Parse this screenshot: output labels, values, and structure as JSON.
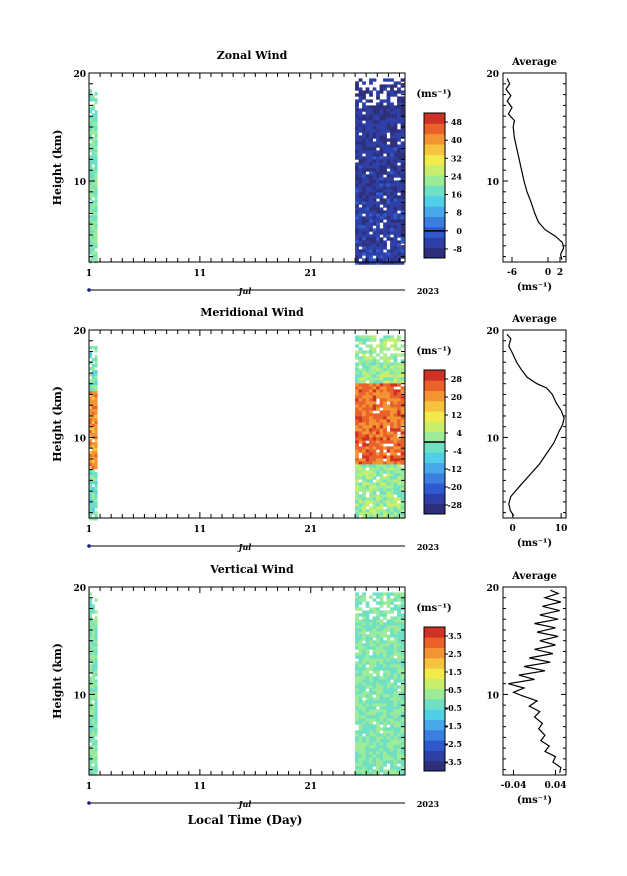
{
  "figure": {
    "xlabel": "Local Time (Day)",
    "cbar_unit": "(ms⁻¹)",
    "avg_unit": "(ms⁻¹)",
    "month_label": "Jul",
    "year_label": "2023"
  },
  "chart_data": [
    {
      "type": "heatmap",
      "title": "Zonal Wind",
      "ylabel": "Height (km)",
      "xlim": [
        1,
        29.5
      ],
      "ylim": [
        2.5,
        20
      ],
      "xticklabels": [
        "1",
        "11",
        "21"
      ],
      "yticklabels": [
        "10",
        "20"
      ],
      "colorbar": {
        "ticks": [
          "48",
          "40",
          "32",
          "24",
          "16",
          "8",
          "0",
          "-8"
        ],
        "range": [
          -12,
          52
        ],
        "zero_level": 0
      },
      "data_blocks": [
        {
          "x": [
            1.0,
            1.5
          ],
          "y": [
            2.5,
            18.5
          ],
          "dominant_value": 20
        },
        {
          "x": [
            25.0,
            29.3
          ],
          "y": [
            2.5,
            19.5
          ],
          "dominant_value": -6
        }
      ],
      "profile": {
        "title": "Average",
        "xlim": [
          -7.5,
          3
        ],
        "ylim": [
          2.5,
          20
        ],
        "xticklabels": [
          "-6",
          "0",
          "2"
        ],
        "yticklabels": [
          "10",
          "20"
        ],
        "points": [
          [
            2.3,
            2.7
          ],
          [
            2.1,
            3.2
          ],
          [
            2.6,
            3.8
          ],
          [
            2.4,
            4.3
          ],
          [
            1.2,
            4.9
          ],
          [
            -0.5,
            5.5
          ],
          [
            -1.6,
            6.2
          ],
          [
            -2.2,
            7.0
          ],
          [
            -2.8,
            8.0
          ],
          [
            -3.5,
            9.0
          ],
          [
            -4.0,
            10.0
          ],
          [
            -4.4,
            11.0
          ],
          [
            -4.8,
            12.0
          ],
          [
            -5.2,
            13.0
          ],
          [
            -5.6,
            14.0
          ],
          [
            -5.8,
            15.0
          ],
          [
            -5.6,
            15.6
          ],
          [
            -6.6,
            16.2
          ],
          [
            -6.0,
            16.8
          ],
          [
            -6.8,
            17.4
          ],
          [
            -6.2,
            17.9
          ],
          [
            -7.0,
            18.5
          ],
          [
            -6.4,
            19.0
          ],
          [
            -6.8,
            19.5
          ]
        ]
      }
    },
    {
      "type": "heatmap",
      "title": "Meridional Wind",
      "ylabel": "Height (km)",
      "xlim": [
        1,
        29.5
      ],
      "ylim": [
        2.5,
        20
      ],
      "xticklabels": [
        "1",
        "11",
        "21"
      ],
      "yticklabels": [
        "10",
        "20"
      ],
      "colorbar": {
        "ticks": [
          "28",
          "20",
          "12",
          "4",
          "-4",
          "-12",
          "-20",
          "-28"
        ],
        "range": [
          -32,
          32
        ],
        "zero_level": 0
      },
      "data_blocks": [
        {
          "x": [
            1.0,
            1.5
          ],
          "y": [
            2.5,
            18.5
          ],
          "dominant_value": 6
        },
        {
          "x": [
            25.0,
            29.3
          ],
          "y": [
            2.5,
            19.5
          ],
          "dominant_value": 10
        }
      ],
      "profile": {
        "title": "Average",
        "xlim": [
          -2,
          11
        ],
        "ylim": [
          2.5,
          20
        ],
        "xticklabels": [
          "0",
          "10"
        ],
        "yticklabels": [
          "10",
          "20"
        ],
        "points": [
          [
            0.2,
            2.7
          ],
          [
            -0.5,
            3.2
          ],
          [
            -0.8,
            3.8
          ],
          [
            -0.4,
            4.5
          ],
          [
            1.5,
            5.5
          ],
          [
            3.5,
            6.5
          ],
          [
            5.5,
            7.5
          ],
          [
            7.0,
            8.5
          ],
          [
            8.5,
            9.5
          ],
          [
            9.5,
            10.5
          ],
          [
            10.3,
            11.2
          ],
          [
            10.6,
            11.8
          ],
          [
            10.0,
            12.5
          ],
          [
            9.0,
            13.2
          ],
          [
            8.2,
            14.0
          ],
          [
            7.0,
            14.6
          ],
          [
            5.0,
            15.0
          ],
          [
            3.0,
            15.6
          ],
          [
            1.8,
            16.3
          ],
          [
            0.8,
            17.0
          ],
          [
            0.0,
            17.8
          ],
          [
            -0.8,
            18.5
          ],
          [
            -0.4,
            19.2
          ],
          [
            -1.2,
            19.6
          ]
        ]
      }
    },
    {
      "type": "heatmap",
      "title": "Vertical Wind",
      "ylabel": "Height (km)",
      "xlim": [
        1,
        29.5
      ],
      "ylim": [
        2.5,
        20
      ],
      "xticklabels": [
        "1",
        "11",
        "21"
      ],
      "yticklabels": [
        "10",
        "20"
      ],
      "colorbar": {
        "ticks": [
          "3.5",
          "2.5",
          "1.5",
          "0.5",
          "-0.5",
          "-1.5",
          "-2.5",
          "-3.5"
        ],
        "range": [
          -4,
          4
        ]
      },
      "data_blocks": [
        {
          "x": [
            1.0,
            1.5
          ],
          "y": [
            2.5,
            19.5
          ],
          "dominant_value": 0
        },
        {
          "x": [
            25.0,
            29.3
          ],
          "y": [
            2.5,
            19.5
          ],
          "dominant_value": 0
        }
      ],
      "profile": {
        "title": "Average",
        "xlim": [
          -0.06,
          0.06
        ],
        "ylim": [
          2.5,
          20
        ],
        "xticklabels": [
          "-0.04",
          "0.04"
        ],
        "yticklabels": [
          "10",
          "20"
        ],
        "points": [
          [
            0.048,
            2.7
          ],
          [
            0.05,
            3.2
          ],
          [
            0.035,
            3.7
          ],
          [
            0.04,
            4.2
          ],
          [
            0.02,
            4.7
          ],
          [
            0.028,
            5.2
          ],
          [
            0.012,
            5.7
          ],
          [
            0.02,
            6.2
          ],
          [
            0.008,
            6.8
          ],
          [
            0.015,
            7.3
          ],
          [
            0.0,
            7.9
          ],
          [
            0.01,
            8.4
          ],
          [
            -0.01,
            8.9
          ],
          [
            0.005,
            9.4
          ],
          [
            -0.025,
            9.9
          ],
          [
            -0.04,
            10.2
          ],
          [
            -0.02,
            10.6
          ],
          [
            -0.05,
            11.0
          ],
          [
            0.0,
            11.4
          ],
          [
            -0.03,
            11.8
          ],
          [
            0.02,
            12.2
          ],
          [
            -0.02,
            12.6
          ],
          [
            0.03,
            13.0
          ],
          [
            -0.01,
            13.4
          ],
          [
            0.035,
            13.8
          ],
          [
            0.0,
            14.2
          ],
          [
            0.04,
            14.6
          ],
          [
            0.01,
            15.0
          ],
          [
            0.045,
            15.4
          ],
          [
            0.005,
            15.8
          ],
          [
            0.04,
            16.2
          ],
          [
            0.0,
            16.6
          ],
          [
            0.045,
            17.0
          ],
          [
            0.01,
            17.4
          ],
          [
            0.048,
            17.8
          ],
          [
            0.015,
            18.2
          ],
          [
            0.05,
            18.6
          ],
          [
            0.02,
            19.0
          ],
          [
            0.045,
            19.4
          ],
          [
            0.03,
            19.7
          ]
        ]
      }
    }
  ]
}
